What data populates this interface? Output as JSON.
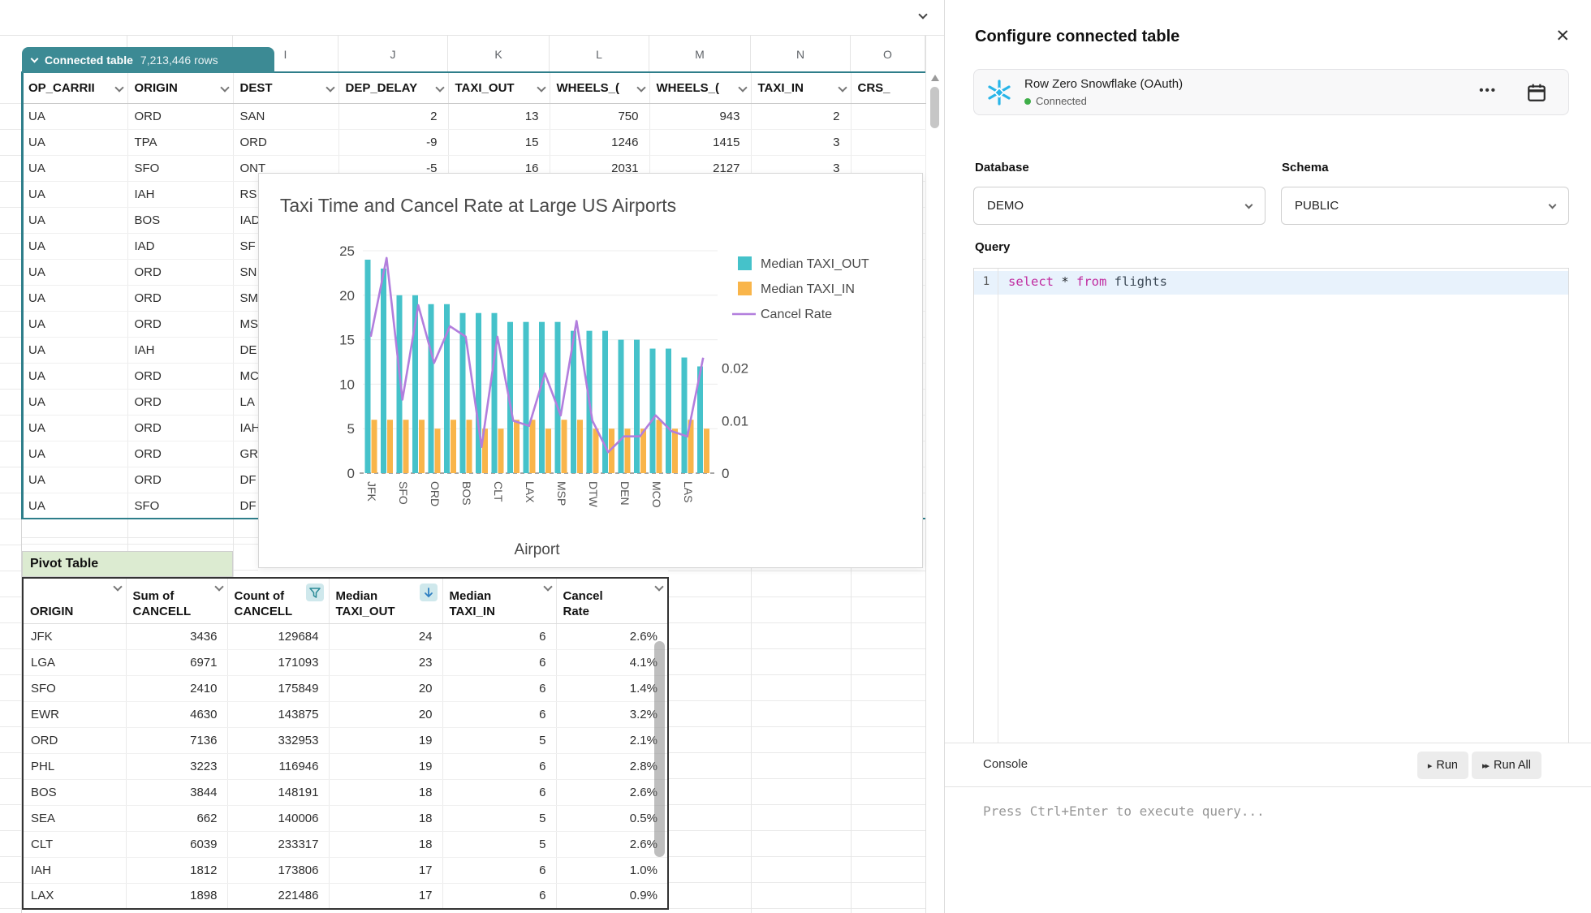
{
  "colors": {
    "badge_teal": "#3c8a94",
    "sel_teal": "#2e7e8a",
    "green_bg": "#dcebd1",
    "icon_bg": "#cfe8ec",
    "status_green": "#3fae49",
    "snowflake_blue": "#29b5e8",
    "bar_teal": "#45c2ca",
    "bar_orange": "#f9b54a",
    "line_purple": "#b27edd"
  },
  "icons": {
    "close": "✕",
    "menu_dots": "•••",
    "run_arrow": "▸",
    "run_all_arrows": "▸▸"
  },
  "sheet": {
    "tab": {
      "label": "Connected table",
      "rows_count": "7,213,446 rows"
    },
    "column_letters": [
      "I",
      "J",
      "K",
      "L",
      "M",
      "N",
      "O"
    ],
    "columns": [
      "OP_CARRII",
      "ORIGIN",
      "DEST",
      "DEP_DELAY",
      "TAXI_OUT",
      "WHEELS_(",
      "WHEELS_(",
      "TAXI_IN",
      "CRS_"
    ],
    "rows": [
      [
        "UA",
        "ORD",
        "SAN",
        "2",
        "13",
        "750",
        "943",
        "2",
        ""
      ],
      [
        "UA",
        "TPA",
        "ORD",
        "-9",
        "15",
        "1246",
        "1415",
        "3",
        ""
      ],
      [
        "UA",
        "SFO",
        "ONT",
        "-5",
        "16",
        "2031",
        "2127",
        "3",
        ""
      ],
      [
        "UA",
        "IAH",
        "RS",
        "",
        "",
        "",
        "",
        "",
        ""
      ],
      [
        "UA",
        "BOS",
        "IAD",
        "",
        "",
        "",
        "",
        "",
        ""
      ],
      [
        "UA",
        "IAD",
        "SF",
        "",
        "",
        "",
        "",
        "",
        ""
      ],
      [
        "UA",
        "ORD",
        "SN",
        "",
        "",
        "",
        "",
        "",
        ""
      ],
      [
        "UA",
        "ORD",
        "SM",
        "",
        "",
        "",
        "",
        "",
        ""
      ],
      [
        "UA",
        "ORD",
        "MS",
        "",
        "",
        "",
        "",
        "",
        ""
      ],
      [
        "UA",
        "IAH",
        "DE",
        "",
        "",
        "",
        "",
        "",
        ""
      ],
      [
        "UA",
        "ORD",
        "MC",
        "",
        "",
        "",
        "",
        "",
        ""
      ],
      [
        "UA",
        "ORD",
        "LA",
        "",
        "",
        "",
        "",
        "",
        ""
      ],
      [
        "UA",
        "ORD",
        "IAH",
        "",
        "",
        "",
        "",
        "",
        ""
      ],
      [
        "UA",
        "ORD",
        "GR",
        "",
        "",
        "",
        "",
        "",
        ""
      ],
      [
        "UA",
        "ORD",
        "DF",
        "",
        "",
        "",
        "",
        "",
        ""
      ],
      [
        "UA",
        "SFO",
        "DF",
        "",
        "",
        "",
        "",
        "",
        ""
      ]
    ]
  },
  "pivot": {
    "label": "Pivot Table",
    "headers": [
      {
        "line1": "",
        "line2": "ORIGIN",
        "icon": "chevron"
      },
      {
        "line1": "Sum of",
        "line2": "CANCELL",
        "icon": "chevron"
      },
      {
        "line1": "Count of",
        "line2": "CANCELL",
        "icon": "filter"
      },
      {
        "line1": "Median",
        "line2": "TAXI_OUT",
        "icon": "sort-desc"
      },
      {
        "line1": "Median",
        "line2": "TAXI_IN",
        "icon": "chevron"
      },
      {
        "line1": "Cancel",
        "line2": "Rate",
        "icon": "chevron"
      }
    ],
    "rows": [
      [
        "JFK",
        "3436",
        "129684",
        "24",
        "6",
        "2.6%"
      ],
      [
        "LGA",
        "6971",
        "171093",
        "23",
        "6",
        "4.1%"
      ],
      [
        "SFO",
        "2410",
        "175849",
        "20",
        "6",
        "1.4%"
      ],
      [
        "EWR",
        "4630",
        "143875",
        "20",
        "6",
        "3.2%"
      ],
      [
        "ORD",
        "7136",
        "332953",
        "19",
        "5",
        "2.1%"
      ],
      [
        "PHL",
        "3223",
        "116946",
        "19",
        "6",
        "2.8%"
      ],
      [
        "BOS",
        "3844",
        "148191",
        "18",
        "6",
        "2.6%"
      ],
      [
        "SEA",
        "662",
        "140006",
        "18",
        "5",
        "0.5%"
      ],
      [
        "CLT",
        "6039",
        "233317",
        "18",
        "5",
        "2.6%"
      ],
      [
        "IAH",
        "1812",
        "173806",
        "17",
        "6",
        "1.0%"
      ],
      [
        "LAX",
        "1898",
        "221486",
        "17",
        "6",
        "0.9%"
      ]
    ]
  },
  "chart_data": {
    "type": "bar+line",
    "title": "Taxi Time and Cancel Rate at Large US Airports",
    "xlabel": "Airport",
    "legend_position": "right",
    "grid": true,
    "x_tick_labels": [
      "JFK",
      "",
      "SFO",
      "",
      "ORD",
      "",
      "BOS",
      "",
      "CLT",
      "",
      "LAX",
      "",
      "MSP",
      "",
      "DTW",
      "",
      "DEN",
      "",
      "MCO",
      "",
      "LAS",
      ""
    ],
    "left_axis": {
      "ticks": [
        0,
        5,
        10,
        15,
        20,
        25
      ],
      "max": 25
    },
    "right_axis": {
      "ticks": [
        0,
        0.01,
        0.02
      ],
      "max": 0.0424
    },
    "series": [
      {
        "name": "Median TAXI_OUT",
        "type": "bar",
        "axis": "left",
        "color": "#45c2ca",
        "values": [
          24,
          23,
          20,
          20,
          19,
          19,
          18,
          18,
          18,
          17,
          17,
          17,
          17,
          16,
          16,
          16,
          15,
          15,
          14,
          14,
          13,
          12
        ]
      },
      {
        "name": "Median TAXI_IN",
        "type": "bar",
        "axis": "left",
        "color": "#f9b54a",
        "values": [
          6,
          6,
          6,
          6,
          5,
          6,
          6,
          5,
          5,
          6,
          6,
          5,
          6,
          6,
          5,
          5,
          5,
          5,
          6,
          5,
          6,
          5
        ]
      },
      {
        "name": "Cancel Rate",
        "type": "line",
        "axis": "right",
        "color": "#b27edd",
        "values": [
          0.026,
          0.041,
          0.014,
          0.032,
          0.021,
          0.028,
          0.026,
          0.005,
          0.026,
          0.01,
          0.009,
          0.019,
          0.011,
          0.029,
          0.01,
          0.004,
          0.007,
          0.007,
          0.011,
          0.008,
          0.007,
          0.022
        ]
      }
    ]
  },
  "panel": {
    "title": "Configure connected table",
    "connector": {
      "name": "Row Zero Snowflake (OAuth)",
      "status": "Connected"
    },
    "database": {
      "label": "Database",
      "value": "DEMO"
    },
    "schema": {
      "label": "Schema",
      "value": "PUBLIC"
    },
    "query": {
      "label": "Query",
      "line_number": "1",
      "kw1": "select",
      "star": " * ",
      "kw2": "from",
      "rest": " flights"
    },
    "console": {
      "label": "Console",
      "run": "Run",
      "run_all": "Run All",
      "placeholder": "Press Ctrl+Enter to execute query..."
    }
  }
}
